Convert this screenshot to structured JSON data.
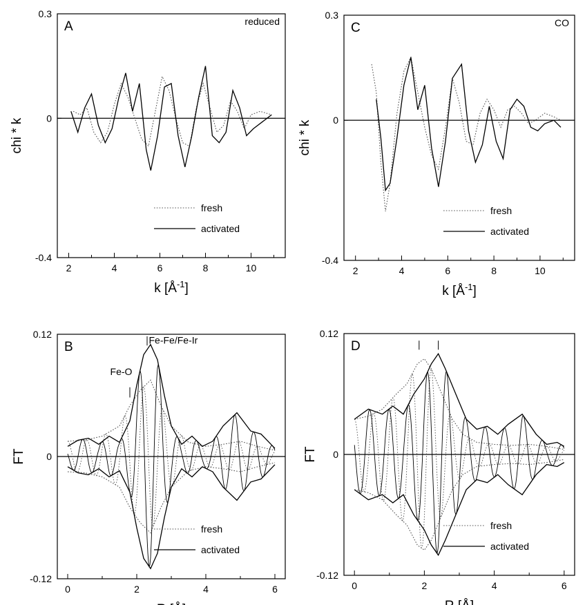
{
  "chart_data": [
    {
      "type": "line",
      "panel_letter": "A",
      "annotation": "reduced",
      "xlabel": "k [Å",
      "xlabel_sup": "-1",
      "xlabel_close": "]",
      "ylabel": "chi * k",
      "xlim": [
        1.5,
        11.5
      ],
      "ylim": [
        -0.4,
        0.3
      ],
      "xticks": [
        2,
        4,
        6,
        8,
        10
      ],
      "xtick_labels": [
        "2",
        "4",
        "6",
        "8",
        "10"
      ],
      "yticks": [
        0.3,
        0,
        -0.4
      ],
      "ytick_labels": [
        "0.3",
        "0",
        "-0.4"
      ],
      "zero_line": true,
      "legend": [
        "fresh",
        "activated"
      ],
      "series": [
        {
          "name": "fresh",
          "style": "dotted",
          "x": [
            2.2,
            2.5,
            2.8,
            3.1,
            3.4,
            3.7,
            4.0,
            4.3,
            4.6,
            4.9,
            5.2,
            5.5,
            5.8,
            6.1,
            6.4,
            6.7,
            7.0,
            7.3,
            7.6,
            7.9,
            8.2,
            8.5,
            8.8,
            9.1,
            9.4,
            9.7,
            10.0,
            10.4,
            10.9
          ],
          "y": [
            0.02,
            0.01,
            0.03,
            -0.04,
            -0.07,
            -0.04,
            0.04,
            0.1,
            0.06,
            0.0,
            -0.06,
            -0.08,
            0.02,
            0.12,
            0.08,
            0.0,
            -0.07,
            -0.08,
            0.03,
            0.1,
            0.03,
            -0.04,
            -0.02,
            0.05,
            0.02,
            -0.03,
            0.01,
            0.02,
            0.01
          ]
        },
        {
          "name": "activated",
          "style": "solid",
          "x": [
            2.1,
            2.4,
            2.7,
            3.0,
            3.3,
            3.6,
            3.9,
            4.2,
            4.5,
            4.8,
            5.1,
            5.4,
            5.6,
            5.9,
            6.2,
            6.5,
            6.8,
            7.1,
            7.4,
            7.7,
            8.0,
            8.3,
            8.6,
            8.9,
            9.2,
            9.5,
            9.8,
            10.1,
            10.5,
            10.9
          ],
          "y": [
            0.02,
            -0.04,
            0.03,
            0.07,
            -0.02,
            -0.07,
            -0.03,
            0.06,
            0.13,
            0.02,
            0.1,
            -0.09,
            -0.15,
            -0.05,
            0.09,
            0.1,
            -0.05,
            -0.14,
            -0.05,
            0.06,
            0.15,
            -0.05,
            -0.07,
            -0.04,
            0.08,
            0.03,
            -0.05,
            -0.03,
            -0.01,
            0.01
          ]
        }
      ]
    },
    {
      "type": "line",
      "panel_letter": "B",
      "peak_labels": [
        "Fe-O",
        "Fe-Fe/Fe-Ir"
      ],
      "xlabel": "R [Å]",
      "ylabel": "FT",
      "xlim": [
        -0.3,
        6.3
      ],
      "ylim": [
        -0.12,
        0.12
      ],
      "xticks": [
        0,
        2,
        4,
        6
      ],
      "xtick_labels": [
        "0",
        "2",
        "4",
        "6"
      ],
      "yticks": [
        0.12,
        0,
        -0.12
      ],
      "ytick_labels": [
        "0.12",
        "0",
        "-0.12"
      ],
      "zero_line": true,
      "legend": [
        "fresh",
        "activated"
      ],
      "series": [
        {
          "name": "fresh",
          "style": "dotted",
          "x": [
            0,
            0.5,
            1.0,
            1.5,
            1.8,
            2.1,
            2.4,
            2.7,
            3.0,
            3.5,
            4.0,
            4.5,
            5.0,
            5.5,
            6.0
          ],
          "y": [
            0.015,
            0.016,
            0.02,
            0.03,
            0.05,
            0.065,
            0.075,
            0.05,
            0.03,
            0.014,
            0.01,
            0.012,
            0.015,
            0.01,
            0.006
          ]
        },
        {
          "name": "activated",
          "style": "solid",
          "x": [
            0,
            0.3,
            0.6,
            0.9,
            1.2,
            1.5,
            1.8,
            2.0,
            2.2,
            2.4,
            2.6,
            2.8,
            3.0,
            3.3,
            3.6,
            3.9,
            4.2,
            4.5,
            4.9,
            5.3,
            5.6,
            6.0
          ],
          "y": [
            0.01,
            0.016,
            0.018,
            0.012,
            0.02,
            0.014,
            0.035,
            0.07,
            0.1,
            0.11,
            0.095,
            0.06,
            0.03,
            0.012,
            0.02,
            0.01,
            0.015,
            0.03,
            0.043,
            0.025,
            0.022,
            0.008
          ]
        }
      ]
    },
    {
      "type": "line",
      "panel_letter": "C",
      "annotation": "CO",
      "xlabel": "k [Å",
      "xlabel_sup": "-1",
      "xlabel_close": "]",
      "ylabel": "chi * k",
      "xlim": [
        1.5,
        11.5
      ],
      "ylim": [
        -0.4,
        0.3
      ],
      "xticks": [
        2,
        4,
        6,
        8,
        10
      ],
      "xtick_labels": [
        "2",
        "4",
        "6",
        "8",
        "10"
      ],
      "yticks": [
        0.3,
        0,
        -0.4
      ],
      "ytick_labels": [
        "0.3",
        "0",
        "-0.4"
      ],
      "zero_line": true,
      "legend": [
        "fresh",
        "activated"
      ],
      "series": [
        {
          "name": "fresh",
          "style": "dotted",
          "x": [
            2.7,
            2.9,
            3.1,
            3.3,
            3.5,
            3.8,
            4.1,
            4.4,
            4.7,
            5.0,
            5.3,
            5.6,
            5.9,
            6.2,
            6.5,
            6.8,
            7.1,
            7.4,
            7.7,
            8.0,
            8.3,
            8.6,
            8.9,
            9.2,
            9.5,
            9.8,
            10.2,
            10.6,
            10.9
          ],
          "y": [
            0.16,
            0.08,
            -0.12,
            -0.26,
            -0.18,
            0.02,
            0.14,
            0.18,
            0.08,
            -0.02,
            -0.1,
            -0.14,
            -0.02,
            0.12,
            0.05,
            -0.06,
            -0.07,
            0.02,
            0.06,
            0.03,
            -0.02,
            0.03,
            0.04,
            0.02,
            -0.01,
            0.0,
            0.02,
            0.01,
            0.0
          ]
        },
        {
          "name": "activated",
          "style": "solid",
          "x": [
            2.9,
            3.1,
            3.3,
            3.5,
            3.8,
            4.1,
            4.4,
            4.7,
            5.0,
            5.3,
            5.6,
            5.9,
            6.2,
            6.6,
            6.9,
            7.2,
            7.5,
            7.8,
            8.1,
            8.4,
            8.7,
            9.0,
            9.3,
            9.6,
            9.9,
            10.2,
            10.6,
            10.9
          ],
          "y": [
            0.06,
            -0.05,
            -0.2,
            -0.18,
            -0.05,
            0.1,
            0.18,
            0.03,
            0.1,
            -0.08,
            -0.19,
            -0.06,
            0.12,
            0.16,
            -0.03,
            -0.12,
            -0.07,
            0.04,
            -0.06,
            -0.11,
            0.03,
            0.06,
            0.04,
            -0.02,
            -0.03,
            -0.01,
            0.0,
            -0.02
          ]
        }
      ]
    },
    {
      "type": "line",
      "panel_letter": "D",
      "xlabel": "R [Å]",
      "ylabel": "FT",
      "xlim": [
        -0.3,
        6.3
      ],
      "ylim": [
        -0.12,
        0.12
      ],
      "xticks": [
        0,
        2,
        4,
        6
      ],
      "xtick_labels": [
        "0",
        "2",
        "4",
        "6"
      ],
      "yticks": [
        0.12,
        0,
        -0.12
      ],
      "ytick_labels": [
        "0.12",
        "0",
        "-0.12"
      ],
      "zero_line": true,
      "legend": [
        "fresh",
        "activated"
      ],
      "series": [
        {
          "name": "fresh",
          "style": "dotted",
          "x": [
            0,
            0.4,
            0.8,
            1.2,
            1.5,
            1.8,
            2.0,
            2.2,
            2.5,
            2.8,
            3.1,
            3.5,
            4.0,
            4.5,
            5.0,
            5.5,
            6.0
          ],
          "y": [
            0.035,
            0.038,
            0.045,
            0.06,
            0.07,
            0.09,
            0.095,
            0.085,
            0.06,
            0.035,
            0.02,
            0.012,
            0.01,
            0.009,
            0.01,
            0.008,
            0.005
          ]
        },
        {
          "name": "activated",
          "style": "solid",
          "x": [
            0,
            0.4,
            0.8,
            1.1,
            1.4,
            1.7,
            2.0,
            2.2,
            2.4,
            2.6,
            2.9,
            3.2,
            3.5,
            3.8,
            4.1,
            4.4,
            4.8,
            5.2,
            5.5,
            5.8,
            6.0
          ],
          "y": [
            0.035,
            0.045,
            0.04,
            0.048,
            0.04,
            0.06,
            0.075,
            0.09,
            0.1,
            0.085,
            0.06,
            0.035,
            0.025,
            0.028,
            0.02,
            0.03,
            0.04,
            0.02,
            0.01,
            0.012,
            0.008
          ]
        }
      ]
    }
  ]
}
